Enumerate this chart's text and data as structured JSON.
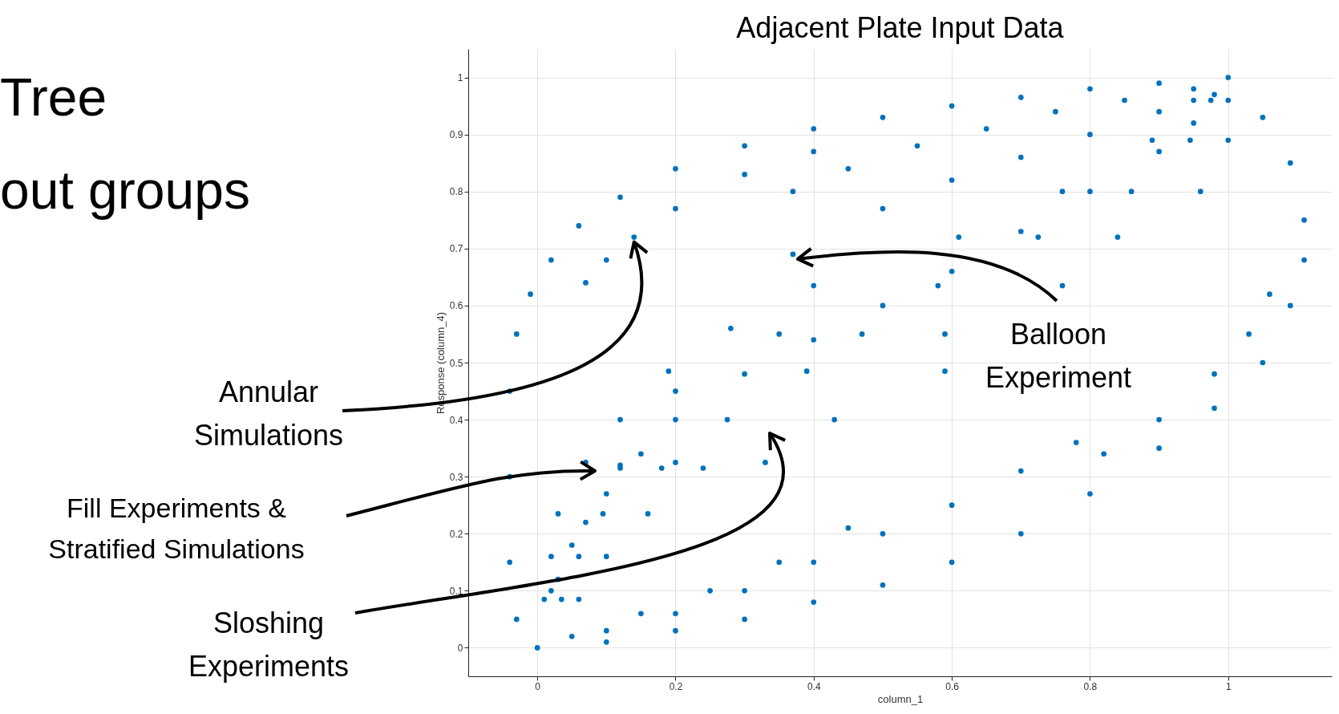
{
  "chart_data": {
    "type": "scatter",
    "title": "Adjacent Plate Input Data",
    "xlabel": "column_1",
    "ylabel": "Response (column_4)",
    "xlim": [
      -0.1,
      1.15
    ],
    "ylim": [
      -0.05,
      1.05
    ],
    "xticks": [
      0,
      0.2,
      0.4,
      0.6,
      0.8,
      1
    ],
    "yticks": [
      0,
      0.1,
      0.2,
      0.3,
      0.4,
      0.5,
      0.6,
      0.7,
      0.8,
      0.9,
      1
    ],
    "grid": true,
    "legend": false,
    "marker": "circle",
    "annotations": [
      "Tree",
      "out groups",
      {
        "text": "Annular Simulations",
        "x": 0.14,
        "y": 0.72
      },
      "Fill Experiments & Stratified Simulations",
      "Sloshing Experiments",
      {
        "text": "Balloon Experiment",
        "x": 0.37,
        "y": 0.69
      }
    ],
    "series": [
      {
        "color": "#0072bd",
        "x": [
          0,
          -0.03,
          -0.04,
          -0.04,
          -0.04,
          -0.03,
          -0.01,
          0.02,
          0.06,
          0.12,
          0.2,
          0.3,
          0.4,
          0.5,
          0.6,
          0.7,
          0.8,
          0.9,
          1.0,
          0.07,
          0.1,
          0.14,
          0.2,
          0.3,
          0.4,
          0.37,
          0.45,
          0.55,
          0.65,
          0.75,
          0.85,
          0.95,
          0.03,
          0.07,
          0.12,
          0.2,
          0.28,
          0.37,
          0.5,
          0.6,
          0.7,
          0.8,
          0.9,
          0.98,
          1.05,
          1.09,
          1.11,
          1.11,
          1.09,
          1.05,
          0.98,
          0.9,
          0.8,
          0.7,
          0.6,
          0.5,
          0.4,
          0.3,
          0.2,
          0.1,
          1.06,
          1.03,
          0.98,
          0.9,
          0.82,
          0.78,
          0.7,
          0.6,
          0.5,
          0.4,
          0.3,
          0.2,
          0.1,
          0.45,
          0.35,
          0.25,
          0.15,
          0.05,
          0.02,
          0.05,
          0.1,
          0.15,
          0.2,
          0.3,
          0.4,
          0.5,
          0.6,
          0.7,
          0.8,
          0.9,
          0.95,
          0.95,
          0.975,
          1.0,
          0.89,
          0.945,
          1.0,
          0.76,
          0.86,
          0.96,
          0.61,
          0.725,
          0.84,
          0.4,
          0.58,
          0.76,
          0.35,
          0.47,
          0.59,
          0.19,
          0.39,
          0.59,
          0.12,
          0.275,
          0.43,
          0.07,
          0.2,
          0.33,
          0.12,
          0.18,
          0.24,
          0.03,
          0.095,
          0.16,
          0.02,
          0.06,
          0.1,
          0.01,
          0.035,
          0.06
        ],
        "values": [
          0,
          0.05,
          0.15,
          0.3,
          0.45,
          0.55,
          0.62,
          0.68,
          0.74,
          0.79,
          0.84,
          0.88,
          0.91,
          0.93,
          0.95,
          0.965,
          0.98,
          0.99,
          1.0,
          0.64,
          0.68,
          0.72,
          0.77,
          0.83,
          0.87,
          0.8,
          0.84,
          0.88,
          0.91,
          0.94,
          0.96,
          0.98,
          0.12,
          0.22,
          0.32,
          0.45,
          0.56,
          0.69,
          0.77,
          0.82,
          0.86,
          0.9,
          0.94,
          0.97,
          0.93,
          0.85,
          0.75,
          0.68,
          0.6,
          0.5,
          0.42,
          0.35,
          0.27,
          0.2,
          0.15,
          0.11,
          0.08,
          0.05,
          0.03,
          0.01,
          0.62,
          0.55,
          0.48,
          0.4,
          0.34,
          0.36,
          0.31,
          0.25,
          0.2,
          0.15,
          0.1,
          0.06,
          0.03,
          0.21,
          0.15,
          0.1,
          0.06,
          0.02,
          0.1,
          0.18,
          0.27,
          0.34,
          0.4,
          0.48,
          0.54,
          0.6,
          0.66,
          0.73,
          0.8,
          0.87,
          0.92,
          0.96,
          0.96,
          0.96,
          0.89,
          0.89,
          0.89,
          0.8,
          0.8,
          0.8,
          0.72,
          0.72,
          0.72,
          0.635,
          0.635,
          0.635,
          0.55,
          0.55,
          0.55,
          0.485,
          0.485,
          0.485,
          0.4,
          0.4,
          0.4,
          0.325,
          0.325,
          0.325,
          0.315,
          0.315,
          0.315,
          0.235,
          0.235,
          0.235,
          0.16,
          0.16,
          0.16,
          0.085,
          0.085,
          0.085
        ]
      }
    ]
  }
}
